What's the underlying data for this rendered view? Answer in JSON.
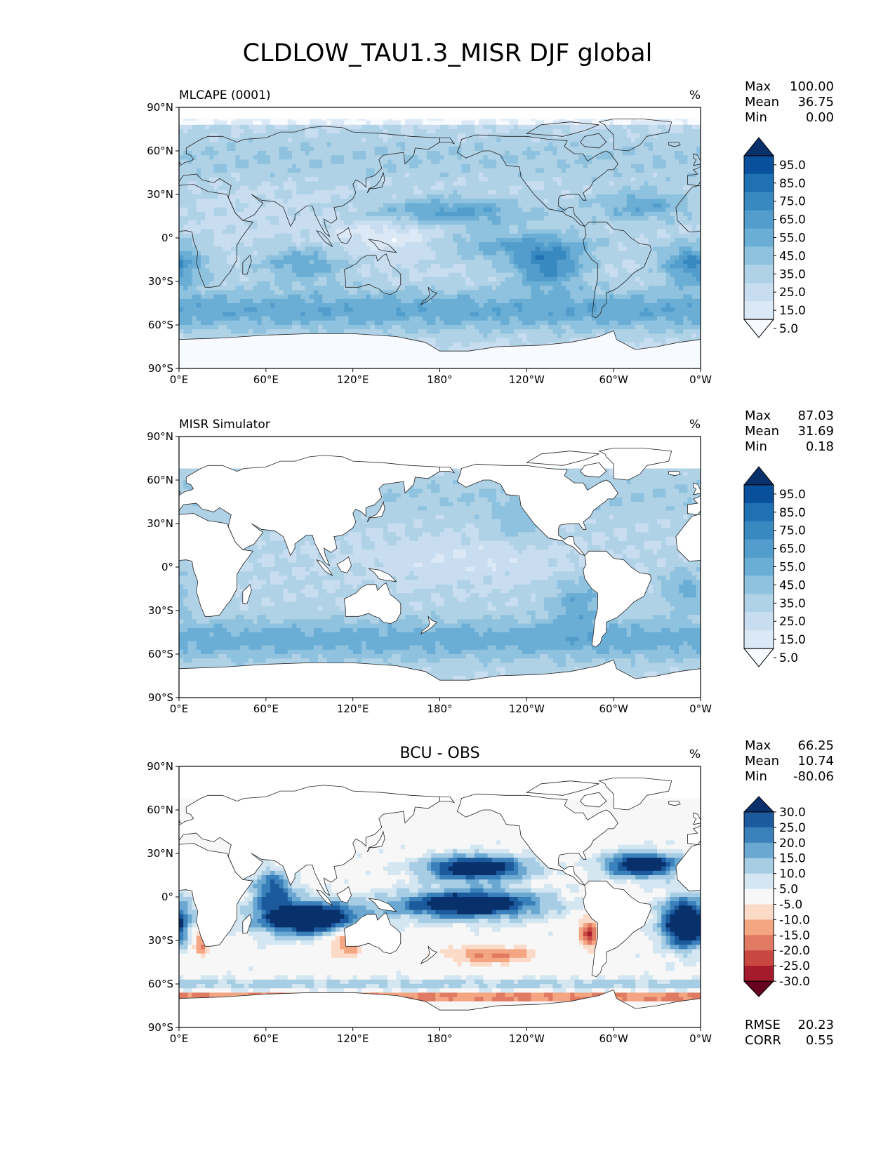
{
  "figure": {
    "title": "CLDLOW_TAU1.3_MISR DJF global"
  },
  "chart_data": [
    {
      "type": "heatmap",
      "panel": "top",
      "title_left": "MLCAPE (0001)",
      "title_center": "",
      "units": "%",
      "stats": [
        {
          "label": "Max",
          "value": "100.00"
        },
        {
          "label": "Mean",
          "value": "36.75"
        },
        {
          "label": "Min",
          "value": "0.00"
        }
      ],
      "x_ticks": [
        "0°E",
        "60°E",
        "120°E",
        "180°",
        "120°W",
        "60°W",
        "0°W"
      ],
      "y_ticks": [
        "90°N",
        "60°N",
        "30°N",
        "0°",
        "30°S",
        "60°S",
        "90°S"
      ],
      "xlim": [
        0,
        360
      ],
      "ylim": [
        -90,
        90
      ],
      "colorbar": {
        "ticks": [
          "95.0",
          "85.0",
          "75.0",
          "65.0",
          "55.0",
          "45.0",
          "35.0",
          "25.0",
          "15.0",
          "5.0"
        ],
        "colors": [
          "#08306b",
          "#08509b",
          "#2070b4",
          "#3989c1",
          "#529dcc",
          "#6aaed6",
          "#8fc2de",
          "#b0d2e7",
          "#c8ddf0",
          "#dbe9f6",
          "#f7fbff"
        ]
      }
    },
    {
      "type": "heatmap",
      "panel": "middle",
      "title_left": "MISR Simulator",
      "title_center": "",
      "units": "%",
      "stats": [
        {
          "label": "Max",
          "value": "87.03"
        },
        {
          "label": "Mean",
          "value": "31.69"
        },
        {
          "label": "Min",
          "value": "0.18"
        }
      ],
      "x_ticks": [
        "0°E",
        "60°E",
        "120°E",
        "180°",
        "120°W",
        "60°W",
        "0°W"
      ],
      "y_ticks": [
        "90°N",
        "60°N",
        "30°N",
        "0°",
        "30°S",
        "60°S",
        "90°S"
      ],
      "xlim": [
        0,
        360
      ],
      "ylim": [
        -90,
        90
      ],
      "colorbar": {
        "ticks": [
          "95.0",
          "85.0",
          "75.0",
          "65.0",
          "55.0",
          "45.0",
          "35.0",
          "25.0",
          "15.0",
          "5.0"
        ],
        "colors": [
          "#08306b",
          "#08509b",
          "#2070b4",
          "#3989c1",
          "#529dcc",
          "#6aaed6",
          "#8fc2de",
          "#b0d2e7",
          "#c8ddf0",
          "#dbe9f6",
          "#f7fbff"
        ]
      }
    },
    {
      "type": "heatmap",
      "panel": "bottom",
      "title_left": "",
      "title_center": "BCU - OBS",
      "units": "%",
      "stats": [
        {
          "label": "Max",
          "value": "66.25"
        },
        {
          "label": "Mean",
          "value": "10.74"
        },
        {
          "label": "Min",
          "value": "-80.06"
        }
      ],
      "extra_stats": [
        {
          "label": "RMSE",
          "value": "20.23"
        },
        {
          "label": "CORR",
          "value": "0.55"
        }
      ],
      "x_ticks": [
        "0°E",
        "60°E",
        "120°E",
        "180°",
        "120°W",
        "60°W",
        "0°W"
      ],
      "y_ticks": [
        "90°N",
        "60°N",
        "30°N",
        "0°",
        "30°S",
        "60°S",
        "90°S"
      ],
      "xlim": [
        0,
        360
      ],
      "ylim": [
        -90,
        90
      ],
      "colorbar": {
        "ticks": [
          "30.0",
          "25.0",
          "20.0",
          "15.0",
          "10.0",
          "5.0",
          "-5.0",
          "-10.0",
          "-15.0",
          "-20.0",
          "-25.0",
          "-30.0"
        ],
        "colors": [
          "#08306b",
          "#1b5a9c",
          "#3a80bb",
          "#6aa8d2",
          "#a6cde3",
          "#d3e6f1",
          "#f7f7f7",
          "#fbdbc8",
          "#f4a582",
          "#e07a62",
          "#c94741",
          "#a51a2c",
          "#67001f"
        ]
      }
    }
  ]
}
